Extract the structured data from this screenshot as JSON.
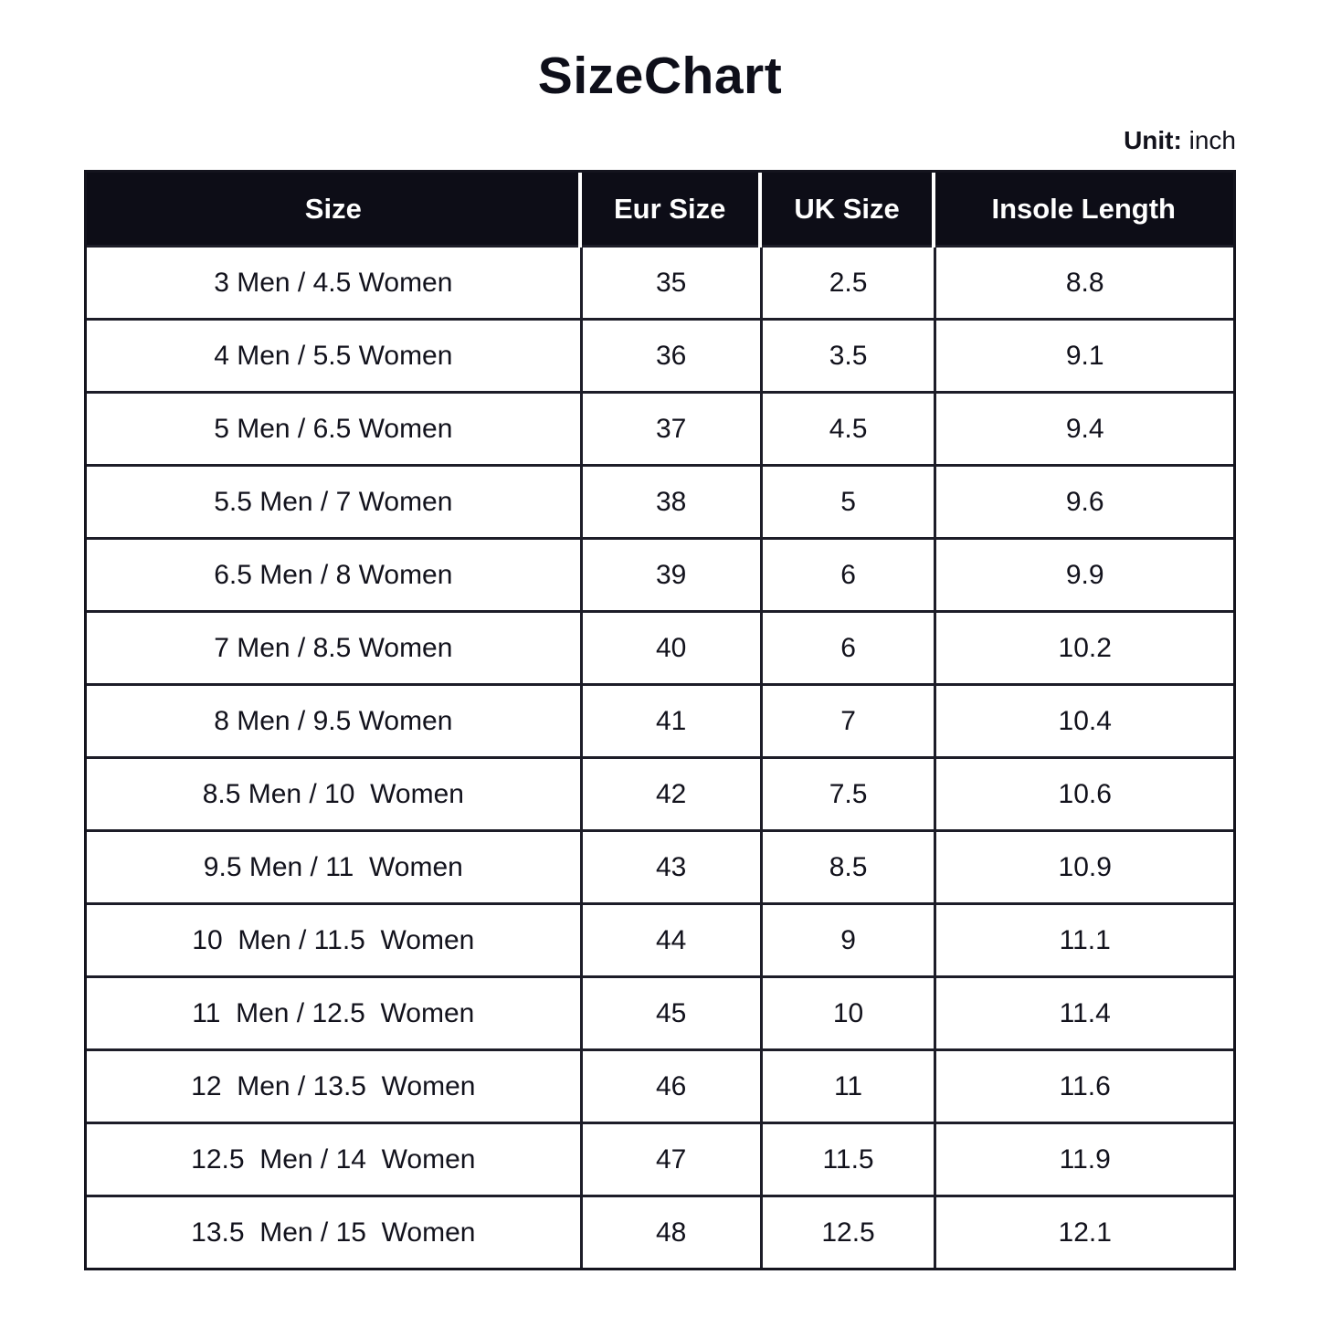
{
  "page": {
    "title": "SizeChart",
    "unit_label": "Unit:",
    "unit_value": "inch"
  },
  "chart_data": {
    "type": "table",
    "title": "SizeChart",
    "unit": "inch",
    "columns": [
      "Size",
      "Eur Size",
      "UK Size",
      "Insole Length"
    ],
    "rows": [
      [
        "3 Men / 4.5 Women",
        "35",
        "2.5",
        "8.8"
      ],
      [
        "4 Men / 5.5 Women",
        "36",
        "3.5",
        "9.1"
      ],
      [
        "5 Men / 6.5 Women",
        "37",
        "4.5",
        "9.4"
      ],
      [
        "5.5 Men / 7 Women",
        "38",
        "5",
        "9.6"
      ],
      [
        "6.5 Men / 8 Women",
        "39",
        "6",
        "9.9"
      ],
      [
        "7 Men / 8.5 Women",
        "40",
        "6",
        "10.2"
      ],
      [
        "8 Men / 9.5 Women",
        "41",
        "7",
        "10.4"
      ],
      [
        "8.5 Men / 10  Women",
        "42",
        "7.5",
        "10.6"
      ],
      [
        "9.5 Men / 11  Women",
        "43",
        "8.5",
        "10.9"
      ],
      [
        "10  Men / 11.5  Women",
        "44",
        "9",
        "11.1"
      ],
      [
        "11  Men / 12.5  Women",
        "45",
        "10",
        "11.4"
      ],
      [
        "12  Men / 13.5  Women",
        "46",
        "11",
        "11.6"
      ],
      [
        "12.5  Men / 14  Women",
        "47",
        "11.5",
        "11.9"
      ],
      [
        "13.5  Men / 15  Women",
        "48",
        "12.5",
        "12.1"
      ]
    ]
  },
  "colors": {
    "page_bg": "#ffffff",
    "header_bg": "#0d0d17",
    "header_text": "#ffffff",
    "border": "#1d1d28",
    "body_text": "#12121c"
  }
}
